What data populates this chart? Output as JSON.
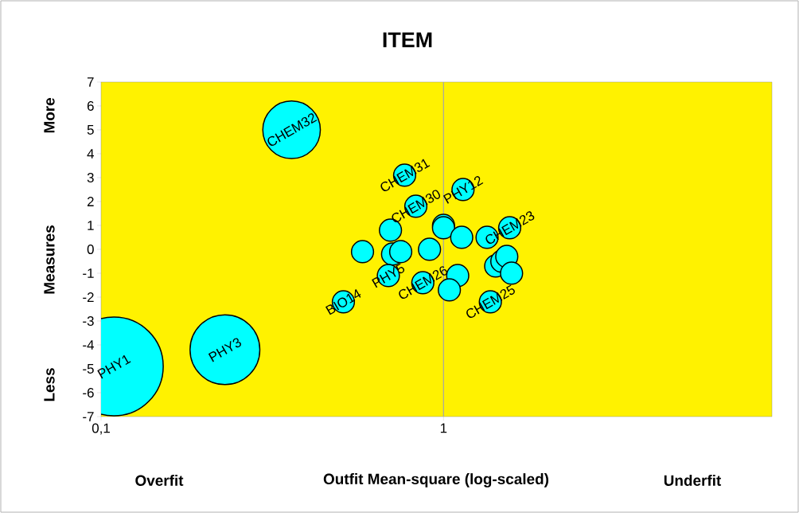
{
  "chart_data": {
    "type": "bubble",
    "title": "ITEM",
    "xlabel": "Outfit Mean-square (log-scaled)",
    "ylabel": "Measures",
    "log": "x",
    "xlim": [
      0.1,
      9.1
    ],
    "xticks": [
      {
        "value": 0.1,
        "label": "0,1"
      },
      1
    ],
    "ylim": [
      -7,
      7
    ],
    "yticks": [
      -7,
      -6,
      -5,
      -4,
      -3,
      -2,
      -1,
      0,
      1,
      2,
      3,
      4,
      5,
      6,
      7
    ],
    "grid": false,
    "marker": "circle",
    "ref_lines": [
      {
        "axis": "x",
        "value": 1,
        "color": "#a6a6a6"
      }
    ],
    "series": [
      {
        "color": "#00ffff",
        "x": [
          0.109,
          0.23,
          0.36,
          0.77,
          0.83,
          1.14,
          0.58,
          0.7,
          0.71,
          0.75,
          0.69,
          0.51,
          0.87,
          1.0,
          1.0,
          0.91,
          1.13,
          1.1,
          1.04,
          1.34,
          1.56,
          1.42,
          1.48,
          1.53,
          1.58,
          1.37
        ],
        "values": [
          -4.9,
          -4.2,
          5.0,
          3.1,
          1.8,
          2.5,
          -0.1,
          0.8,
          -0.2,
          -0.1,
          -1.1,
          -2.2,
          -1.4,
          1.0,
          0.9,
          0.0,
          0.5,
          -1.1,
          -1.7,
          0.5,
          0.9,
          -0.7,
          -0.5,
          -0.3,
          -1.0,
          -2.2
        ],
        "sizes": [
          1,
          0.5,
          0.34,
          0.05,
          0.05,
          0.05,
          0.05,
          0.05,
          0.05,
          0.05,
          0.05,
          0.05,
          0.05,
          0.05,
          0.05,
          0.05,
          0.05,
          0.05,
          0.05,
          0.05,
          0.05,
          0.05,
          0.05,
          0.05,
          0.05,
          0.05
        ]
      }
    ],
    "annotations": [
      "More",
      "Less",
      "Overfit",
      "Underfit",
      {
        "text": "PHY1",
        "x": 0.109,
        "y": -4.9
      },
      {
        "text": "PHY3",
        "x": 0.23,
        "y": -4.2
      },
      {
        "text": "CHEM32",
        "x": 0.36,
        "y": 5.0
      },
      {
        "text": "CHEM31",
        "x": 0.77,
        "y": 3.1
      },
      {
        "text": "CHEM30",
        "x": 0.83,
        "y": 1.8
      },
      {
        "text": "PHY12",
        "x": 1.14,
        "y": 2.5
      },
      {
        "text": "PHY5",
        "x": 0.69,
        "y": -1.1
      },
      {
        "text": "BIO14",
        "x": 0.51,
        "y": -2.2
      },
      {
        "text": "CHEM26",
        "x": 0.87,
        "y": -1.4
      },
      {
        "text": "CHEM23",
        "x": 1.56,
        "y": 0.9
      },
      {
        "text": "CHEM25",
        "x": 1.37,
        "y": -2.2
      }
    ]
  }
}
